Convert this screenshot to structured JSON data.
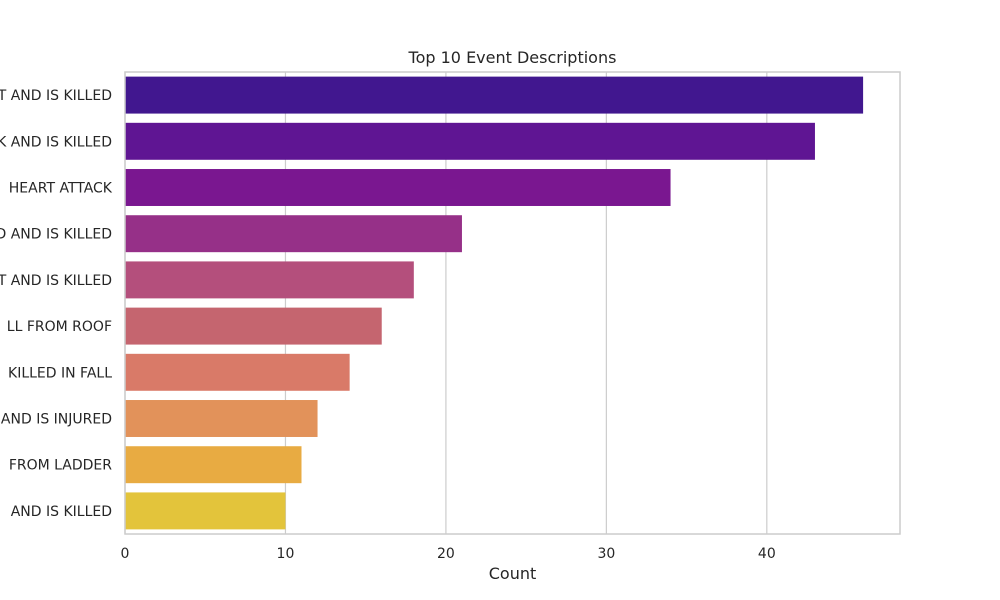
{
  "chart_data": {
    "type": "bar",
    "orientation": "horizontal",
    "title": "Top 10 Event Descriptions",
    "xlabel": "Count",
    "ylabel": "",
    "xlim": [
      0,
      48.3
    ],
    "x_ticks": [
      0,
      10,
      20,
      30,
      40
    ],
    "grid": true,
    "categories": [
      "T AND IS KILLED",
      "K AND IS KILLED",
      "HEART ATTACK",
      "D AND IS KILLED",
      "T AND IS KILLED",
      "LL FROM ROOF",
      "KILLED IN FALL",
      "AND IS INJURED",
      "FROM LADDER",
      "AND IS KILLED"
    ],
    "values": [
      46,
      43,
      34,
      21,
      18,
      16,
      14,
      12,
      11,
      10
    ],
    "colors": [
      "#41178f",
      "#5f1593",
      "#7a1790",
      "#963088",
      "#b44f7c",
      "#c5656f",
      "#d97a68",
      "#e2925a",
      "#e8ab42",
      "#e3c43b"
    ]
  }
}
